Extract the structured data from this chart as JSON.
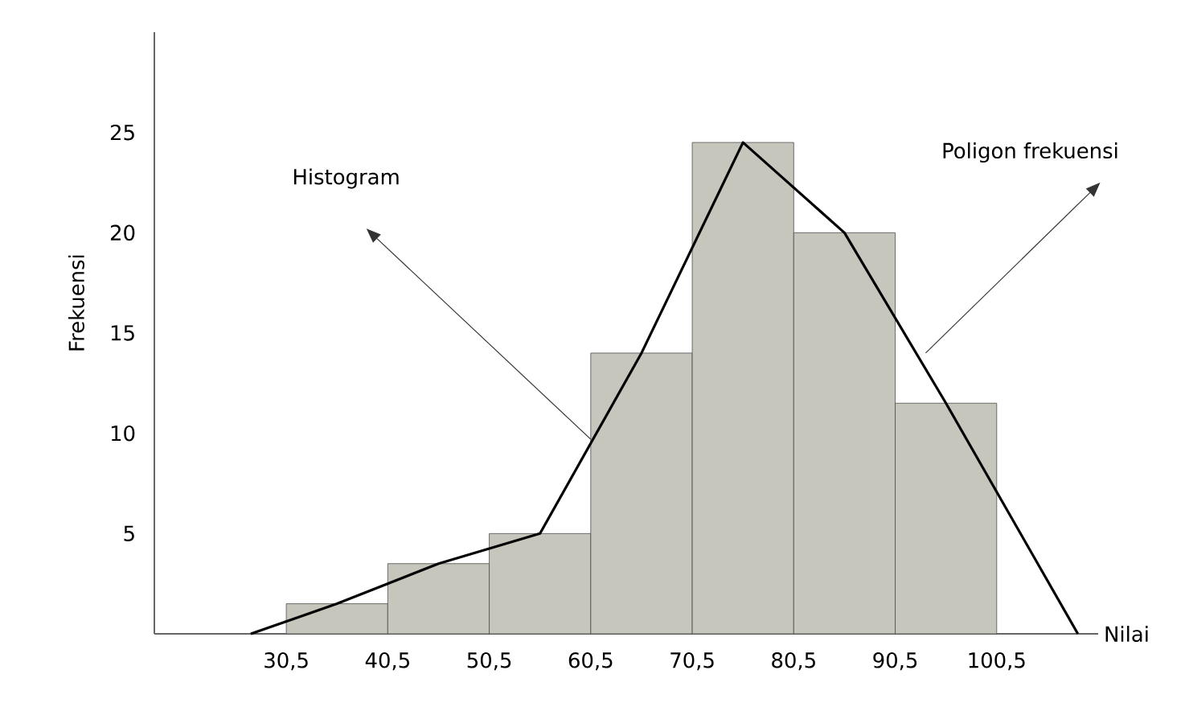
{
  "chart_data": {
    "type": "histogram",
    "xlabel": "Nilai",
    "ylabel": "Frekuensi",
    "bins": [
      30.5,
      40.5,
      50.5,
      60.5,
      70.5,
      80.5,
      90.5,
      100.5
    ],
    "values": [
      1.5,
      3.5,
      5,
      14,
      24.5,
      20,
      11.5
    ],
    "color": "#c6c6bc",
    "series": [
      {
        "type": "line",
        "color": "#000000",
        "x": [
          27,
          35.5,
          45.5,
          55.5,
          65.5,
          75.5,
          85.5,
          95.5,
          108.5
        ],
        "values": [
          0,
          1.5,
          3.5,
          5,
          14,
          24.5,
          20,
          11.5,
          0
        ]
      }
    ],
    "xlim": [
      17.5,
      110.5
    ],
    "ylim": [
      0,
      30
    ],
    "xticks": [
      {
        "value": 30.5,
        "label": "30,5"
      },
      {
        "value": 40.5,
        "label": "40,5"
      },
      {
        "value": 50.5,
        "label": "50,5"
      },
      {
        "value": 60.5,
        "label": "60,5"
      },
      {
        "value": 70.5,
        "label": "70,5"
      },
      {
        "value": 80.5,
        "label": "80,5"
      },
      {
        "value": 90.5,
        "label": "90,5"
      },
      {
        "value": 100.5,
        "label": "100,5"
      }
    ],
    "yticks": [
      5,
      10,
      15,
      20,
      25
    ],
    "annotations": [
      "Histogram",
      "Poligon frekuensi"
    ]
  }
}
